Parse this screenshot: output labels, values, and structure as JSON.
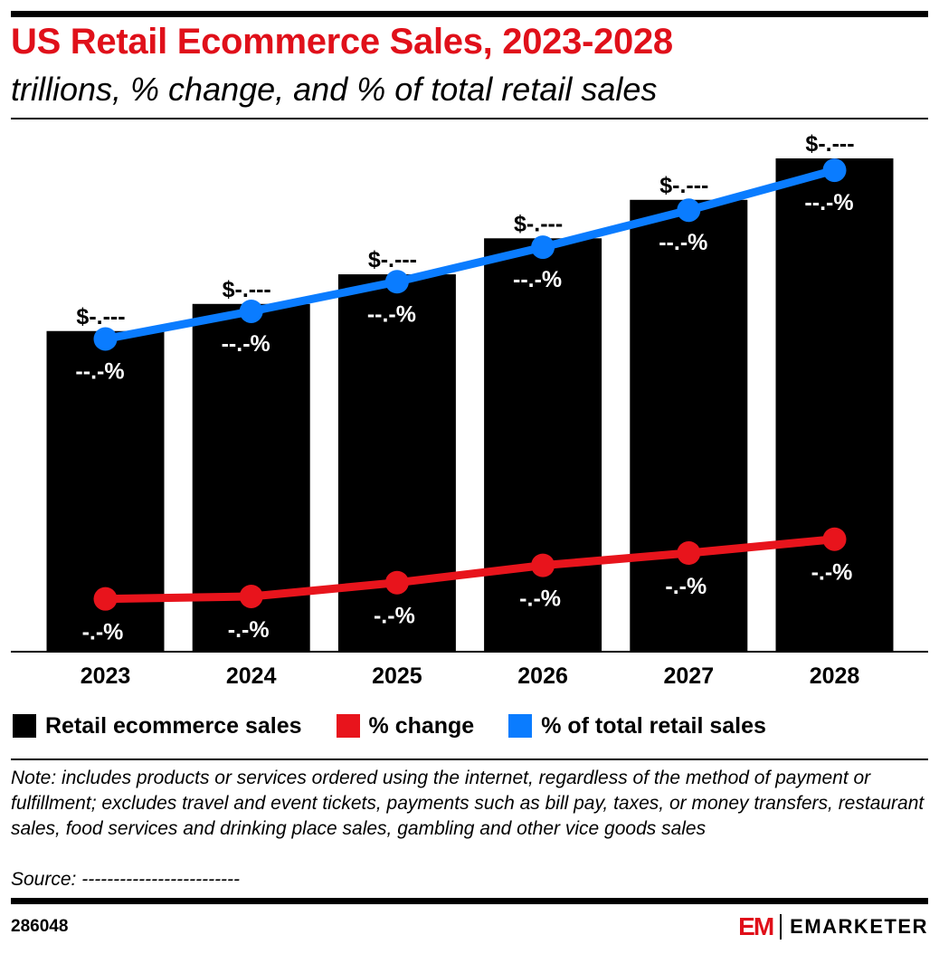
{
  "header": {
    "title": "US Retail Ecommerce Sales, 2023-2028",
    "subtitle": "trillions, % change, and % of total retail sales"
  },
  "chart_data": {
    "type": "bar",
    "categories": [
      "2023",
      "2024",
      "2025",
      "2026",
      "2027",
      "2028"
    ],
    "series": [
      {
        "name": "Retail ecommerce sales",
        "kind": "bar",
        "color": "#000000",
        "relative_level": [
          0.65,
          0.705,
          0.765,
          0.838,
          0.916,
          1.0
        ],
        "labels": [
          "$-.---",
          "$-.---",
          "$-.---",
          "$-.---",
          "$-.---",
          "$-.---"
        ]
      },
      {
        "name": "% change",
        "kind": "line",
        "color": "#e8141c",
        "relative_level": [
          0.107,
          0.112,
          0.14,
          0.175,
          0.2,
          0.228
        ],
        "labels": [
          "-.-%",
          "-.-%",
          "-.-%",
          "-.-%",
          "-.-%",
          "-.-%"
        ]
      },
      {
        "name": "% of total retail sales",
        "kind": "line",
        "color": "#0a7cff",
        "relative_level": [
          0.634,
          0.69,
          0.75,
          0.82,
          0.895,
          0.976
        ],
        "labels": [
          "--.-%",
          "--.-%",
          "--.-%",
          "--.-%",
          "--.-%",
          "--.-%"
        ]
      }
    ],
    "legend": "bottom-left",
    "grid": false
  },
  "footer": {
    "note": "Note: includes products or services ordered using the internet, regardless of the method of payment or fulfillment; excludes travel and event tickets, payments such as bill pay, taxes, or money transfers, restaurant sales, food services and drinking place sales, gambling and other vice goods sales",
    "source": "Source: -------------------------",
    "chart_id": "286048",
    "logo_mark": "EM",
    "logo_text": "EMARKETER"
  }
}
